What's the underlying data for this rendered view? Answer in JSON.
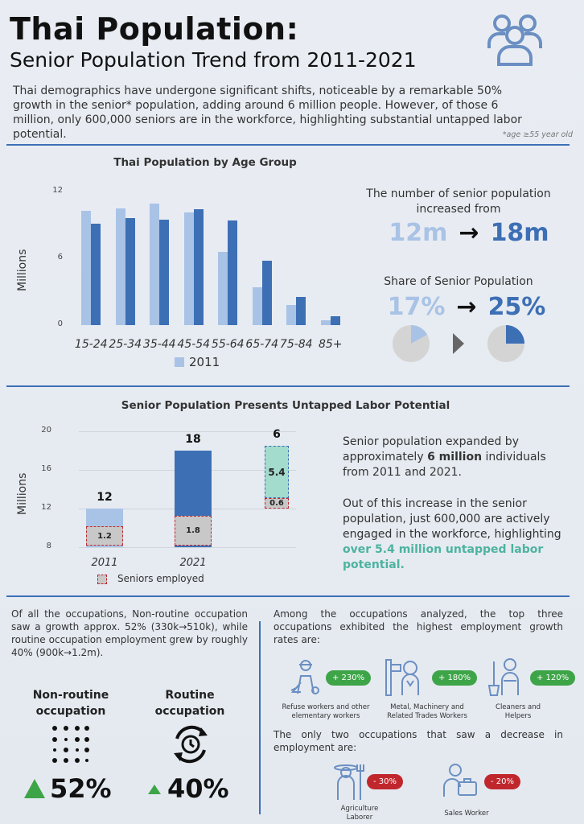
{
  "header": {
    "title": "Thai Population:",
    "subtitle": "Senior Population Trend from 2011-2021",
    "intro": "Thai demographics have undergone significant shifts, noticeable by a remarkable 50% growth in the senior* population, adding around 6 million people. However, of those 6 million, only 600,000 seniors are in the workforce, highlighting substantial untapped labor potential.",
    "age_note": "*age ≥55 year old",
    "icon": "people-group-icon"
  },
  "chart_data": [
    {
      "type": "bar",
      "title": "Thai Population by Age Group",
      "ylabel": "Millions",
      "ylim": [
        0,
        12
      ],
      "yticks": [
        "0",
        "6",
        "12"
      ],
      "categories": [
        "15-24",
        "25-34",
        "35-44",
        "45-54",
        "55-64",
        "65-74",
        "75-84",
        "85+"
      ],
      "series": [
        {
          "name": "2011",
          "color": "#a9c3e6",
          "values": [
            10.3,
            10.5,
            10.9,
            10.1,
            6.6,
            3.4,
            1.8,
            0.4
          ]
        },
        {
          "name": "",
          "color": "#3d6fb5",
          "values": [
            9.1,
            9.6,
            9.5,
            10.4,
            9.4,
            5.8,
            2.5,
            0.8
          ]
        }
      ],
      "legend": "bottom"
    },
    {
      "type": "bar",
      "title": "Senior Population Presents Untapped Labor Potential",
      "ylabel": "Millions",
      "ylim": [
        8,
        20
      ],
      "yticks": [
        "8",
        "12",
        "16",
        "20"
      ],
      "categories": [
        "2011",
        "2021",
        ""
      ],
      "totals": [
        "12",
        "18",
        "6"
      ],
      "bars": [
        {
          "total": 12,
          "employed": 1.2,
          "employed_label": "1.2",
          "color": "#a9c3e6"
        },
        {
          "total": 18,
          "employed": 1.8,
          "employed_label": "1.8",
          "color": "#3d6fb5"
        },
        {
          "base": 12,
          "employed": 0.6,
          "employed_label": "0.6",
          "untapped": 5.4,
          "untapped_label": "5.4",
          "color": "#a3dbcc"
        }
      ],
      "legend_label": "Seniors employed"
    }
  ],
  "stats": {
    "increase_label": "The number of senior population increased from",
    "from": "12m",
    "to": "18m",
    "share_label": "Share of Senior Population",
    "share_from": "17%",
    "share_to": "25%",
    "share_from_value": 0.17,
    "share_to_value": 0.25
  },
  "labor_text": {
    "p1_a": "Senior population expanded by approximately ",
    "p1_b": "6 million",
    "p1_c": " individuals from 2011 and 2021.",
    "p2_a": "Out of this increase in the senior population, just 600,000 are actively engaged in the workforce, highlighting ",
    "p2_b": "over 5.4 million untapped labor potential."
  },
  "occupations": {
    "left_text": "Of all the occupations, Non-routine occupation saw a growth approx. 52% (330k→510k), while routine occupation employment grew by roughly 40% (900k→1.2m).",
    "nonroutine_label": "Non-routine occupation",
    "nonroutine_value": "52%",
    "routine_label": "Routine occupation",
    "routine_value": "40%",
    "top_text": "Among the occupations analyzed, the top three occupations exhibited the highest employment growth rates are:",
    "top": [
      {
        "badge": "+ 230%",
        "caption": "Refuse workers and other elementary workers",
        "icon": "refuse-worker-icon"
      },
      {
        "badge": "+ 180%",
        "caption": "Metal, Machinery and Related Trades Workers",
        "icon": "machinery-worker-icon"
      },
      {
        "badge": "+ 120%",
        "caption": "Cleaners and Helpers",
        "icon": "cleaner-icon"
      }
    ],
    "decrease_text": "The only two occupations that saw a decrease in employment are:",
    "decrease": [
      {
        "badge": "- 30%",
        "caption": "Agriculture Laborer",
        "icon": "farmer-icon"
      },
      {
        "badge": "- 20%",
        "caption": "Sales Worker",
        "icon": "sales-worker-icon"
      }
    ]
  }
}
